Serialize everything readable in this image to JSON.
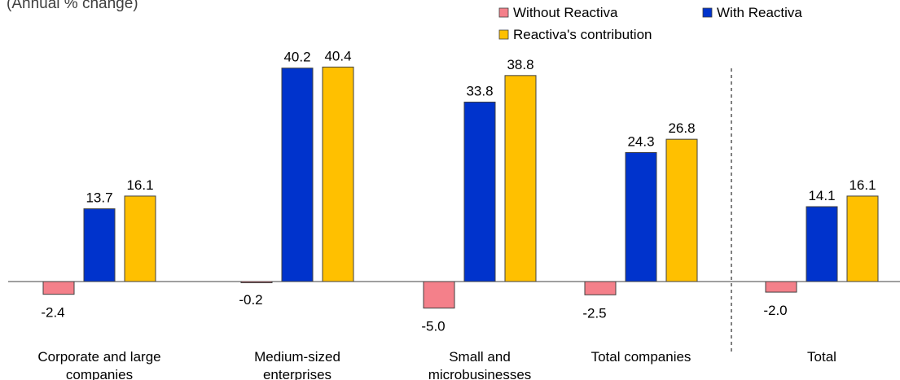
{
  "chart_data": {
    "type": "bar",
    "subtitle": "(Annual  % change)",
    "categories": [
      [
        "Corporate and large",
        "companies"
      ],
      [
        "Medium-sized",
        "enterprises"
      ],
      [
        "Small and",
        "microbusinesses"
      ],
      [
        "Total companies"
      ],
      [
        "Total"
      ]
    ],
    "series": [
      {
        "name": "Without Reactiva",
        "color": "#f4808a",
        "values": [
          -2.4,
          -0.2,
          -5.0,
          -2.5,
          -2.0
        ]
      },
      {
        "name": "With Reactiva",
        "color": "#0033cc",
        "values": [
          13.7,
          40.2,
          33.8,
          24.3,
          14.1
        ]
      },
      {
        "name": "Reactiva's contribution",
        "color": "#ffc000",
        "values": [
          16.1,
          40.4,
          38.8,
          26.8,
          16.1
        ]
      }
    ],
    "labels": [
      [
        "-2.4",
        "13.7",
        "16.1"
      ],
      [
        "-0.2",
        "40.2",
        "40.4"
      ],
      [
        "-5.0",
        "33.8",
        "38.8"
      ],
      [
        "-2.5",
        "24.3",
        "26.8"
      ],
      [
        "-2.0",
        "14.1",
        "16.1"
      ]
    ],
    "ylim": [
      -6,
      45
    ],
    "legend_position": "top-right",
    "separator_before_category": 4
  }
}
